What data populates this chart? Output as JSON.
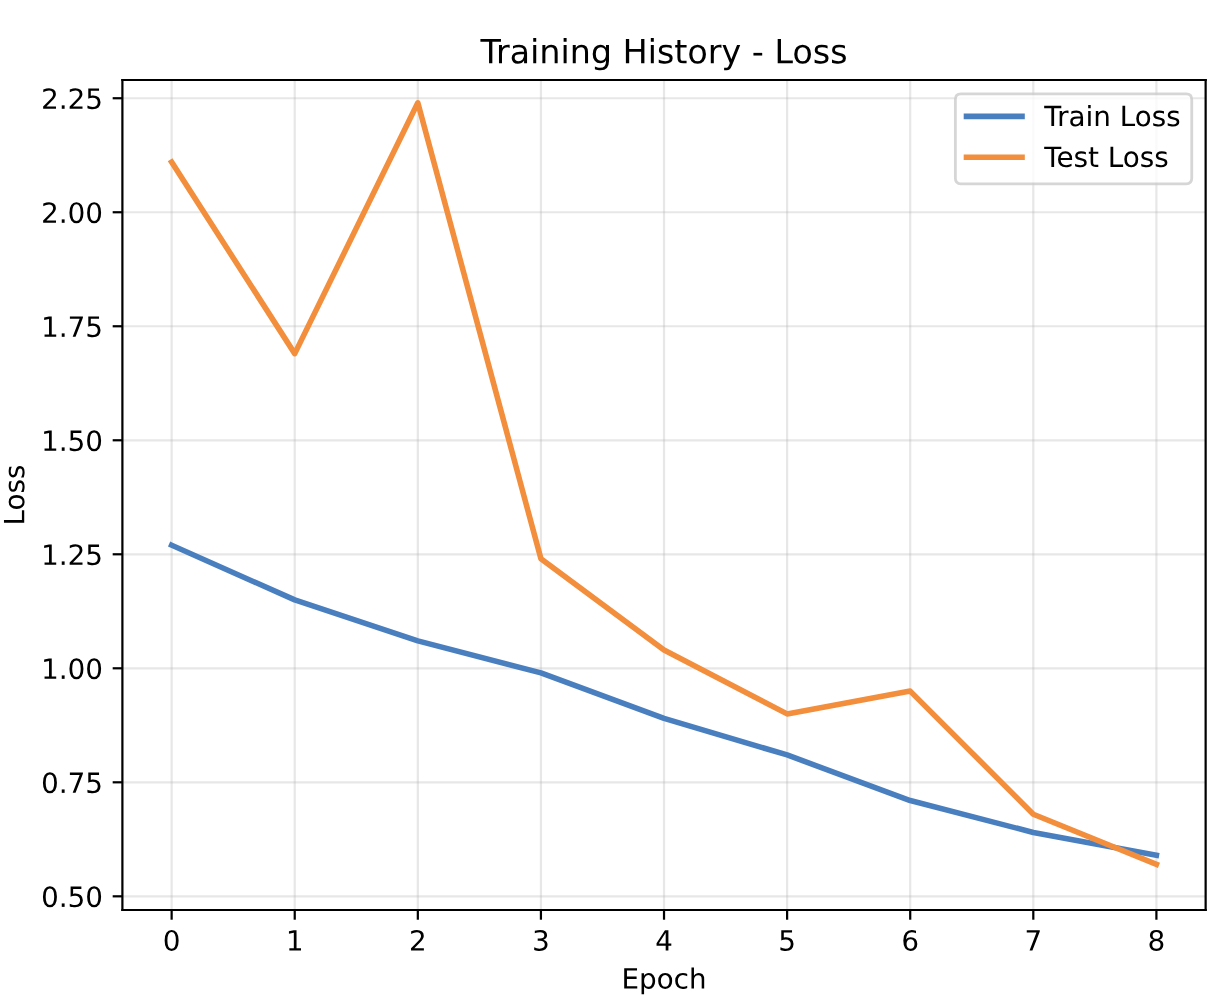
{
  "chart_data": {
    "type": "line",
    "title": "Training History - Loss",
    "xlabel": "Epoch",
    "ylabel": "Loss",
    "x": [
      0,
      1,
      2,
      3,
      4,
      5,
      6,
      7,
      8
    ],
    "series": [
      {
        "name": "Train Loss",
        "color": "#4a7fbf",
        "values": [
          1.27,
          1.15,
          1.06,
          0.99,
          0.89,
          0.81,
          0.71,
          0.64,
          0.59
        ]
      },
      {
        "name": "Test Loss",
        "color": "#f28e3c",
        "values": [
          2.11,
          1.69,
          2.24,
          1.24,
          1.04,
          0.9,
          0.95,
          0.68,
          0.57
        ]
      }
    ],
    "xlim": [
      -0.4,
      8.4
    ],
    "ylim": [
      0.47,
      2.29
    ],
    "xticks": [
      0,
      1,
      2,
      3,
      4,
      5,
      6,
      7,
      8
    ],
    "yticks": [
      {
        "value": 0.5,
        "label": "0.50"
      },
      {
        "value": 0.75,
        "label": "0.75"
      },
      {
        "value": 1.0,
        "label": "1.00"
      },
      {
        "value": 1.25,
        "label": "1.25"
      },
      {
        "value": 1.5,
        "label": "1.50"
      },
      {
        "value": 1.75,
        "label": "1.75"
      },
      {
        "value": 2.0,
        "label": "2.00"
      },
      {
        "value": 2.25,
        "label": "2.25"
      }
    ],
    "grid": true,
    "legend": "top right",
    "marker": "none",
    "line_style": "solid"
  }
}
